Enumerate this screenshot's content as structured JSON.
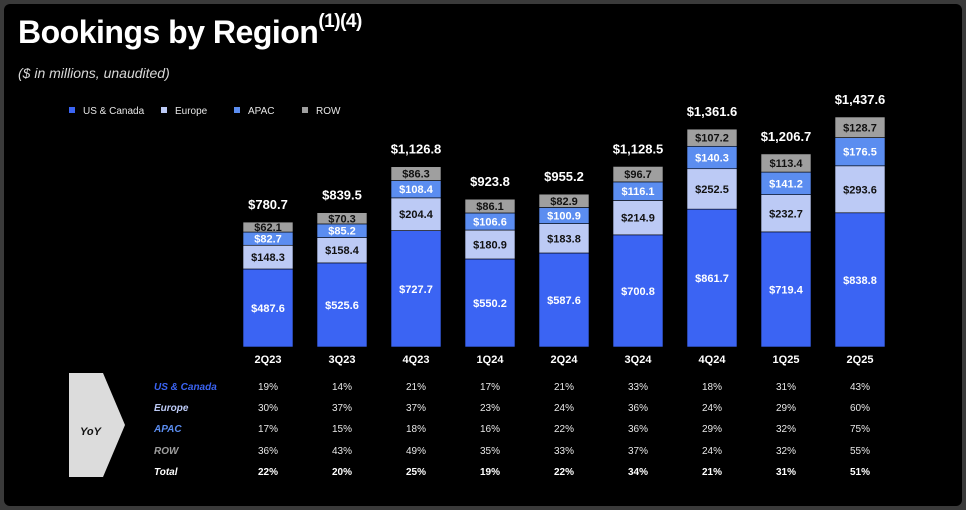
{
  "title": "Bookings by Region",
  "title_footnote": "(1)(4)",
  "subtitle": "($ in millions, unaudited)",
  "colors": {
    "US & Canada": "#3b64f3",
    "Europe": "#bccaf5",
    "APAC": "#5b8df0",
    "ROW": "#9f9f9f",
    "background": "#000000"
  },
  "chart_data": {
    "type": "bar",
    "stacked": true,
    "categories": [
      "2Q23",
      "3Q23",
      "4Q23",
      "1Q24",
      "2Q24",
      "3Q24",
      "4Q24",
      "1Q25",
      "2Q25"
    ],
    "series": [
      {
        "name": "US & Canada",
        "values": [
          487.6,
          525.6,
          727.7,
          550.2,
          587.6,
          700.8,
          861.7,
          719.4,
          838.8
        ],
        "labels": [
          "$487.6",
          "$525.6",
          "$727.7",
          "$550.2",
          "$587.6",
          "$700.8",
          "$861.7",
          "$719.4",
          "$838.8"
        ]
      },
      {
        "name": "Europe",
        "values": [
          148.3,
          158.4,
          204.4,
          180.9,
          183.8,
          214.9,
          252.5,
          232.7,
          293.6
        ],
        "labels": [
          "$148.3",
          "$158.4",
          "$204.4",
          "$180.9",
          "$183.8",
          "$214.9",
          "$252.5",
          "$232.7",
          "$293.6"
        ]
      },
      {
        "name": "APAC",
        "values": [
          82.7,
          85.2,
          108.4,
          106.6,
          100.9,
          116.1,
          140.3,
          141.2,
          176.5
        ],
        "labels": [
          "$82.7",
          "$85.2",
          "$108.4",
          "$106.6",
          "$100.9",
          "$116.1",
          "$140.3",
          "$141.2",
          "$176.5"
        ]
      },
      {
        "name": "ROW",
        "values": [
          62.1,
          70.3,
          86.3,
          86.1,
          82.9,
          96.7,
          107.2,
          113.4,
          128.7
        ],
        "labels": [
          "$62.1",
          "$70.3",
          "$86.3",
          "$86.1",
          "$82.9",
          "$96.7",
          "$107.2",
          "$113.4",
          "$128.7"
        ]
      }
    ],
    "totals": [
      780.7,
      839.5,
      1126.8,
      923.8,
      955.2,
      1128.5,
      1361.6,
      1206.7,
      1437.6
    ],
    "total_labels": [
      "$780.7",
      "$839.5",
      "$1,126.8",
      "$923.8",
      "$955.2",
      "$1,128.5",
      "$1,361.6",
      "$1,206.7",
      "$1,437.6"
    ],
    "legend_position": "top-left",
    "grid": false
  },
  "yoy": {
    "label": "YoY",
    "rows": [
      {
        "name": "US & Canada",
        "color": "#3b64f3",
        "bold": false,
        "values": [
          "19%",
          "14%",
          "21%",
          "17%",
          "21%",
          "33%",
          "18%",
          "31%",
          "43%"
        ]
      },
      {
        "name": "Europe",
        "color": "#bccaf5",
        "bold": false,
        "values": [
          "30%",
          "37%",
          "37%",
          "23%",
          "24%",
          "36%",
          "24%",
          "29%",
          "60%"
        ]
      },
      {
        "name": "APAC",
        "color": "#5b8df0",
        "bold": false,
        "values": [
          "17%",
          "15%",
          "18%",
          "16%",
          "22%",
          "36%",
          "29%",
          "32%",
          "75%"
        ]
      },
      {
        "name": "ROW",
        "color": "#9f9f9f",
        "bold": false,
        "values": [
          "36%",
          "43%",
          "49%",
          "35%",
          "33%",
          "37%",
          "24%",
          "32%",
          "55%"
        ]
      },
      {
        "name": "Total",
        "color": "#ffffff",
        "bold": true,
        "values": [
          "22%",
          "20%",
          "25%",
          "19%",
          "22%",
          "34%",
          "21%",
          "31%",
          "51%"
        ]
      }
    ]
  }
}
